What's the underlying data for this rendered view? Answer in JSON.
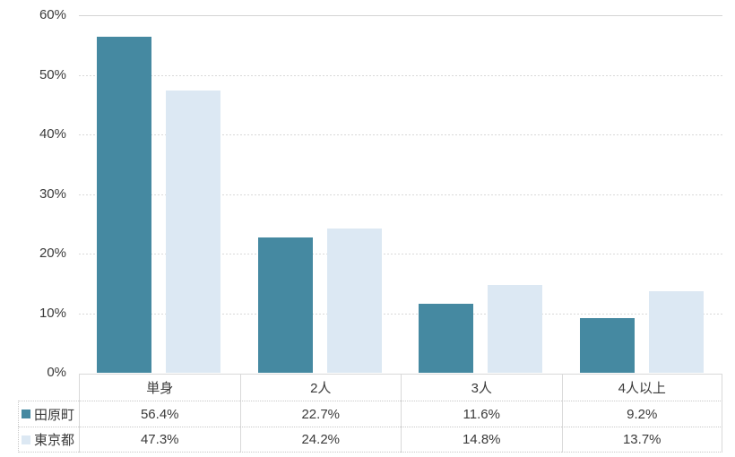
{
  "chart_data": {
    "type": "bar",
    "title": "",
    "xlabel": "",
    "ylabel": "",
    "categories": [
      "単身",
      "2人",
      "3人",
      "4人以上"
    ],
    "series": [
      {
        "name": "田原町",
        "color": "#4589a1",
        "values": [
          56.4,
          22.7,
          11.6,
          9.2
        ],
        "value_labels": [
          "56.4%",
          "22.7%",
          "11.6%",
          "9.2%"
        ]
      },
      {
        "name": "東京都",
        "color": "#dce8f3",
        "values": [
          47.3,
          24.2,
          14.8,
          13.7
        ],
        "value_labels": [
          "47.3%",
          "24.2%",
          "14.8%",
          "13.7%"
        ]
      }
    ],
    "ylim": [
      0,
      60
    ],
    "ytick_step": 10,
    "yticks": [
      "0%",
      "10%",
      "20%",
      "30%",
      "40%",
      "50%",
      "60%"
    ],
    "grid": "horizontal-dashed",
    "legend_position": "data-table-left",
    "gridline_color": "#d9d9d9",
    "text_color": "#3a3a3a"
  }
}
